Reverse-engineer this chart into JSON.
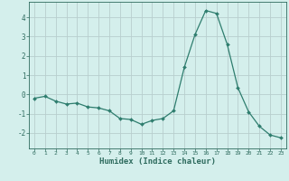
{
  "x": [
    0,
    1,
    2,
    3,
    4,
    5,
    6,
    7,
    8,
    9,
    10,
    11,
    12,
    13,
    14,
    15,
    16,
    17,
    18,
    19,
    20,
    21,
    22,
    23
  ],
  "y": [
    -0.2,
    -0.1,
    -0.35,
    -0.5,
    -0.45,
    -0.65,
    -0.7,
    -0.85,
    -1.25,
    -1.3,
    -1.55,
    -1.35,
    -1.25,
    -0.85,
    1.4,
    3.1,
    4.35,
    4.2,
    2.6,
    0.35,
    -0.9,
    -1.65,
    -2.1,
    -2.25
  ],
  "line_color": "#2e7d6e",
  "marker": "D",
  "marker_size": 2.0,
  "bg_color": "#d4efec",
  "grid_color": "#b8cece",
  "tick_color": "#2e6b5e",
  "axis_color": "#2e6b5e",
  "xlabel": "Humidex (Indice chaleur)",
  "xlabel_fontsize": 6.5,
  "yticks": [
    -2,
    -1,
    0,
    1,
    2,
    3,
    4
  ],
  "xticks": [
    0,
    1,
    2,
    3,
    4,
    5,
    6,
    7,
    8,
    9,
    10,
    11,
    12,
    13,
    14,
    15,
    16,
    17,
    18,
    19,
    20,
    21,
    22,
    23
  ],
  "ylim": [
    -2.8,
    4.8
  ],
  "xlim": [
    -0.5,
    23.5
  ]
}
